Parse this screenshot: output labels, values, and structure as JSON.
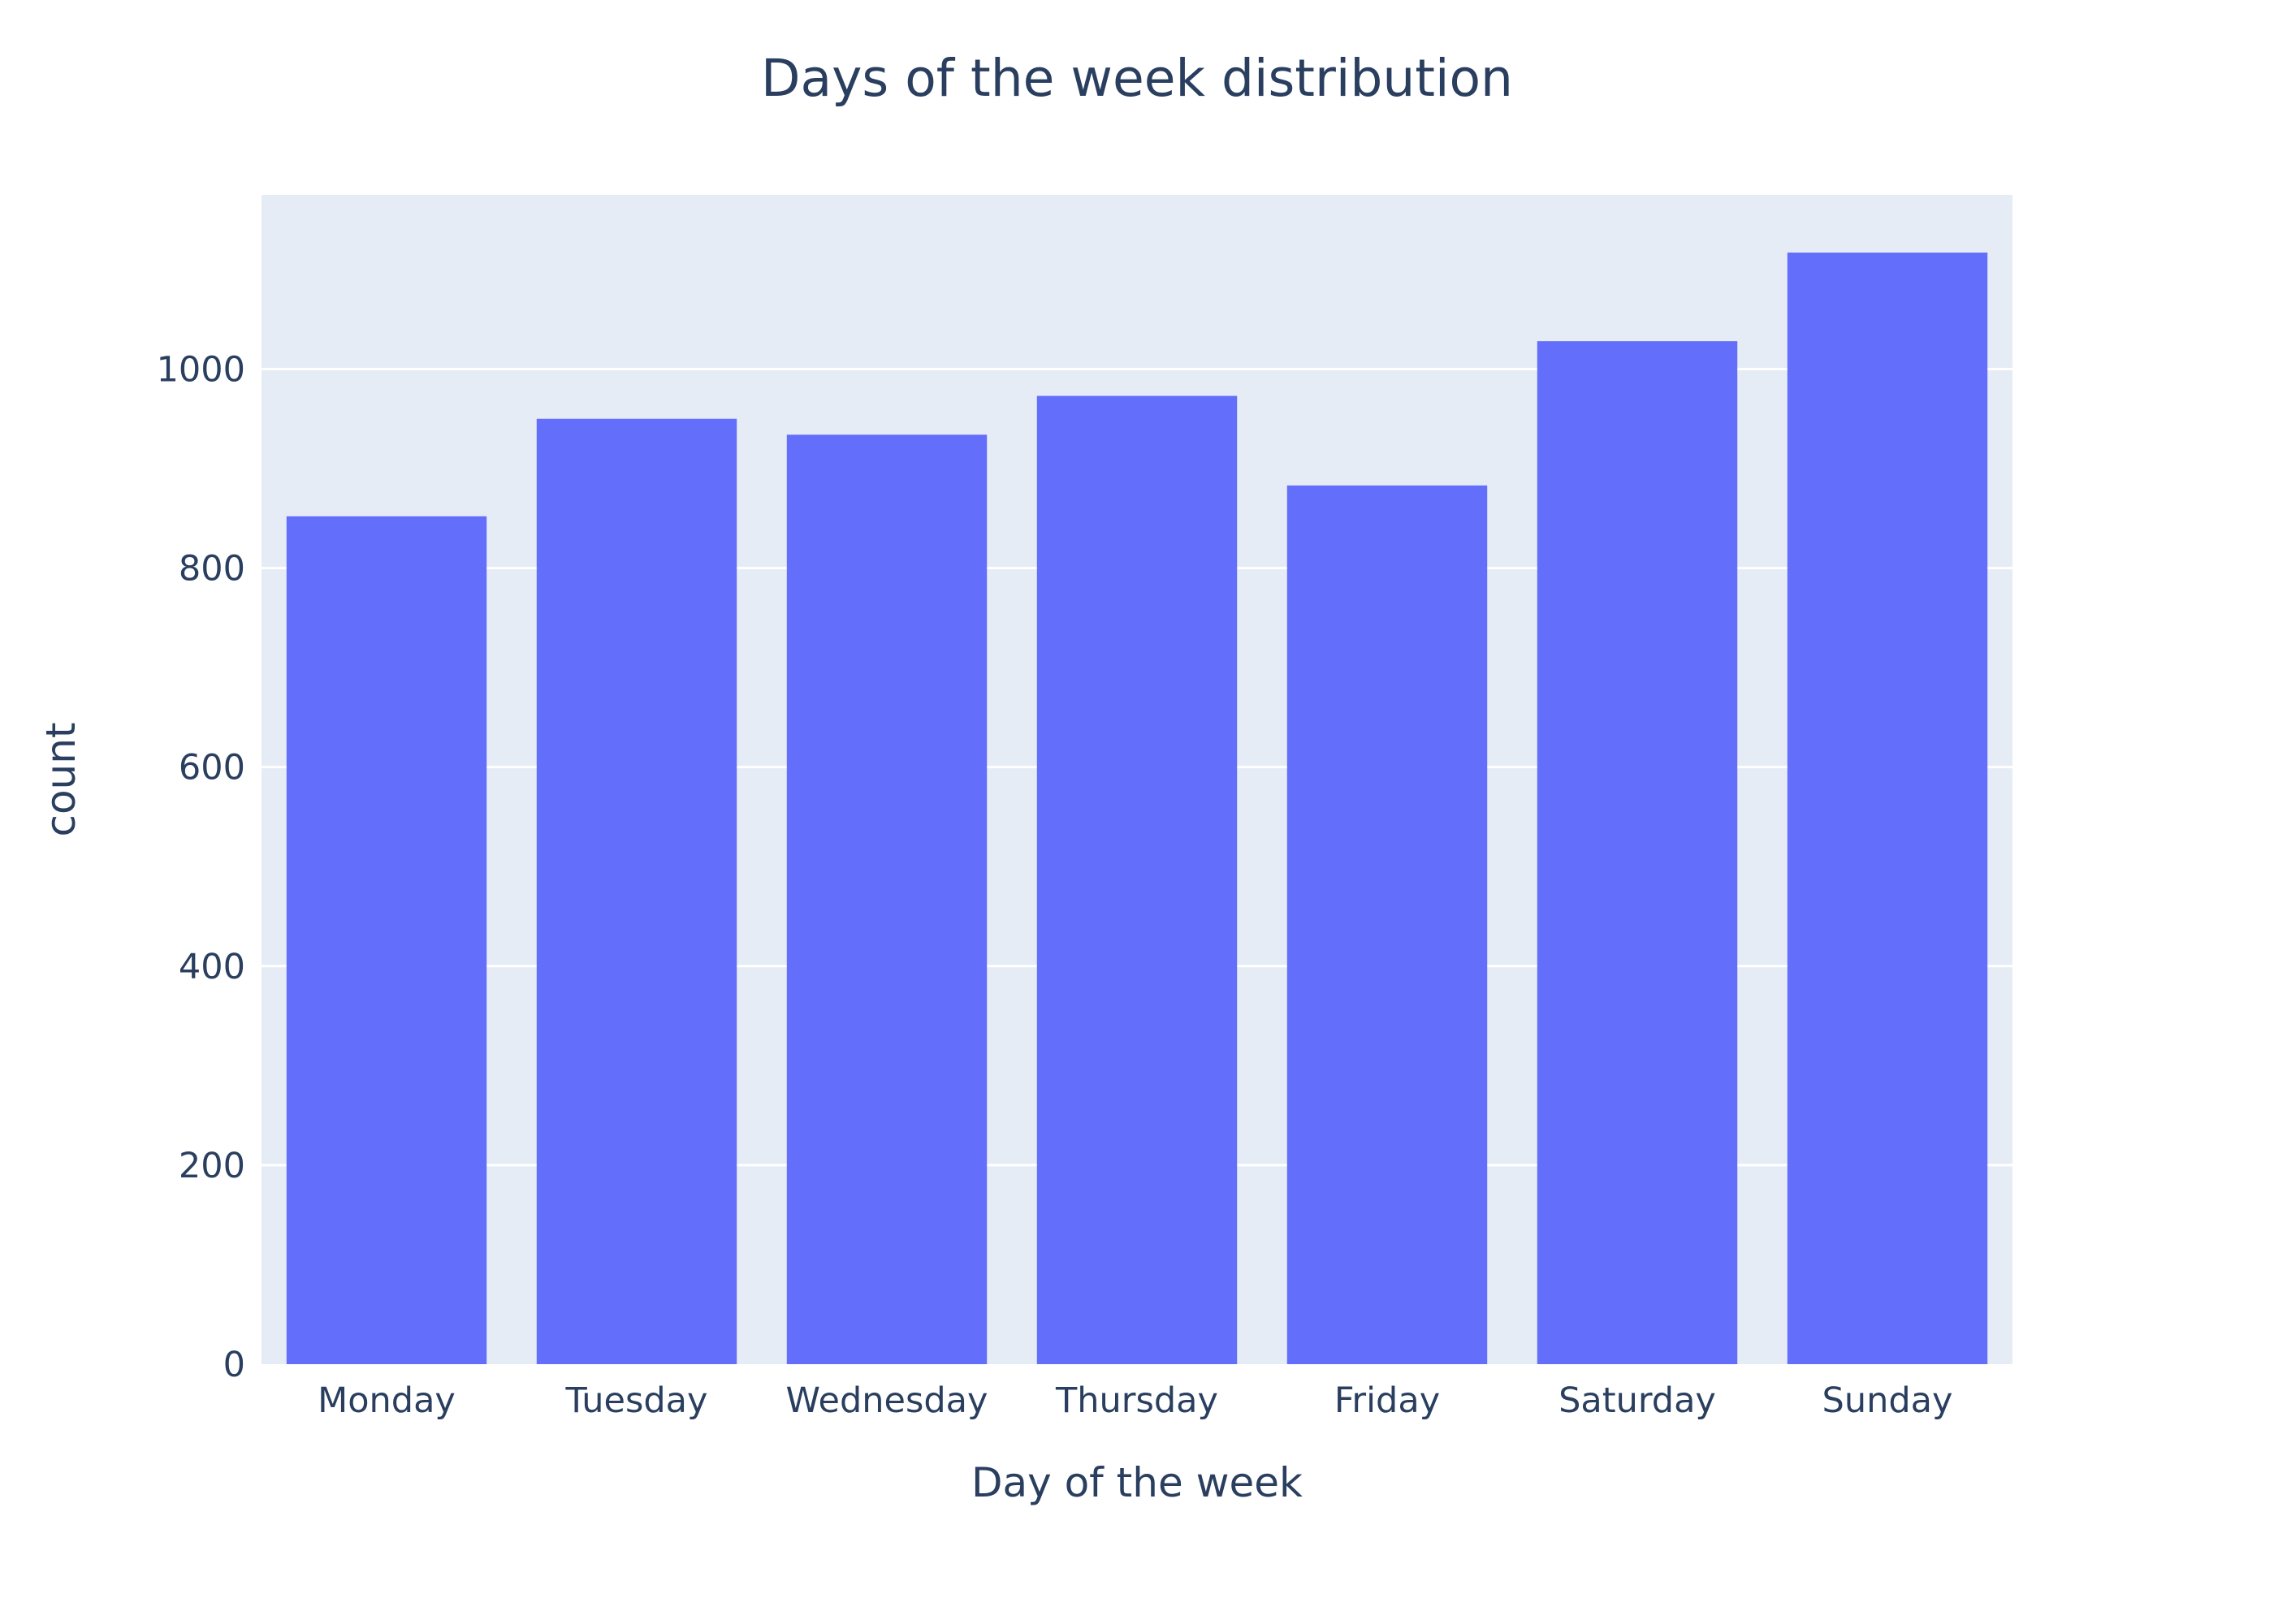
{
  "chart_data": {
    "type": "bar",
    "title": "Days of the week distribution",
    "xlabel": "Day of the week",
    "ylabel": "count",
    "categories": [
      "Monday",
      "Tuesday",
      "Wednesday",
      "Thursday",
      "Friday",
      "Saturday",
      "Sunday"
    ],
    "values": [
      852,
      950,
      934,
      973,
      883,
      1028,
      1117
    ],
    "ylim": [
      0,
      1175
    ],
    "yticks": [
      0,
      200,
      400,
      600,
      800,
      1000
    ],
    "ytick_labels": [
      "0",
      "200",
      "400",
      "600",
      "800",
      "1000"
    ],
    "grid": true,
    "legend": "none",
    "colors": {
      "bar": "#636efa",
      "plot_background": "#e5ecf6",
      "grid": "#ffffff",
      "text": "#2a3f5f"
    }
  }
}
